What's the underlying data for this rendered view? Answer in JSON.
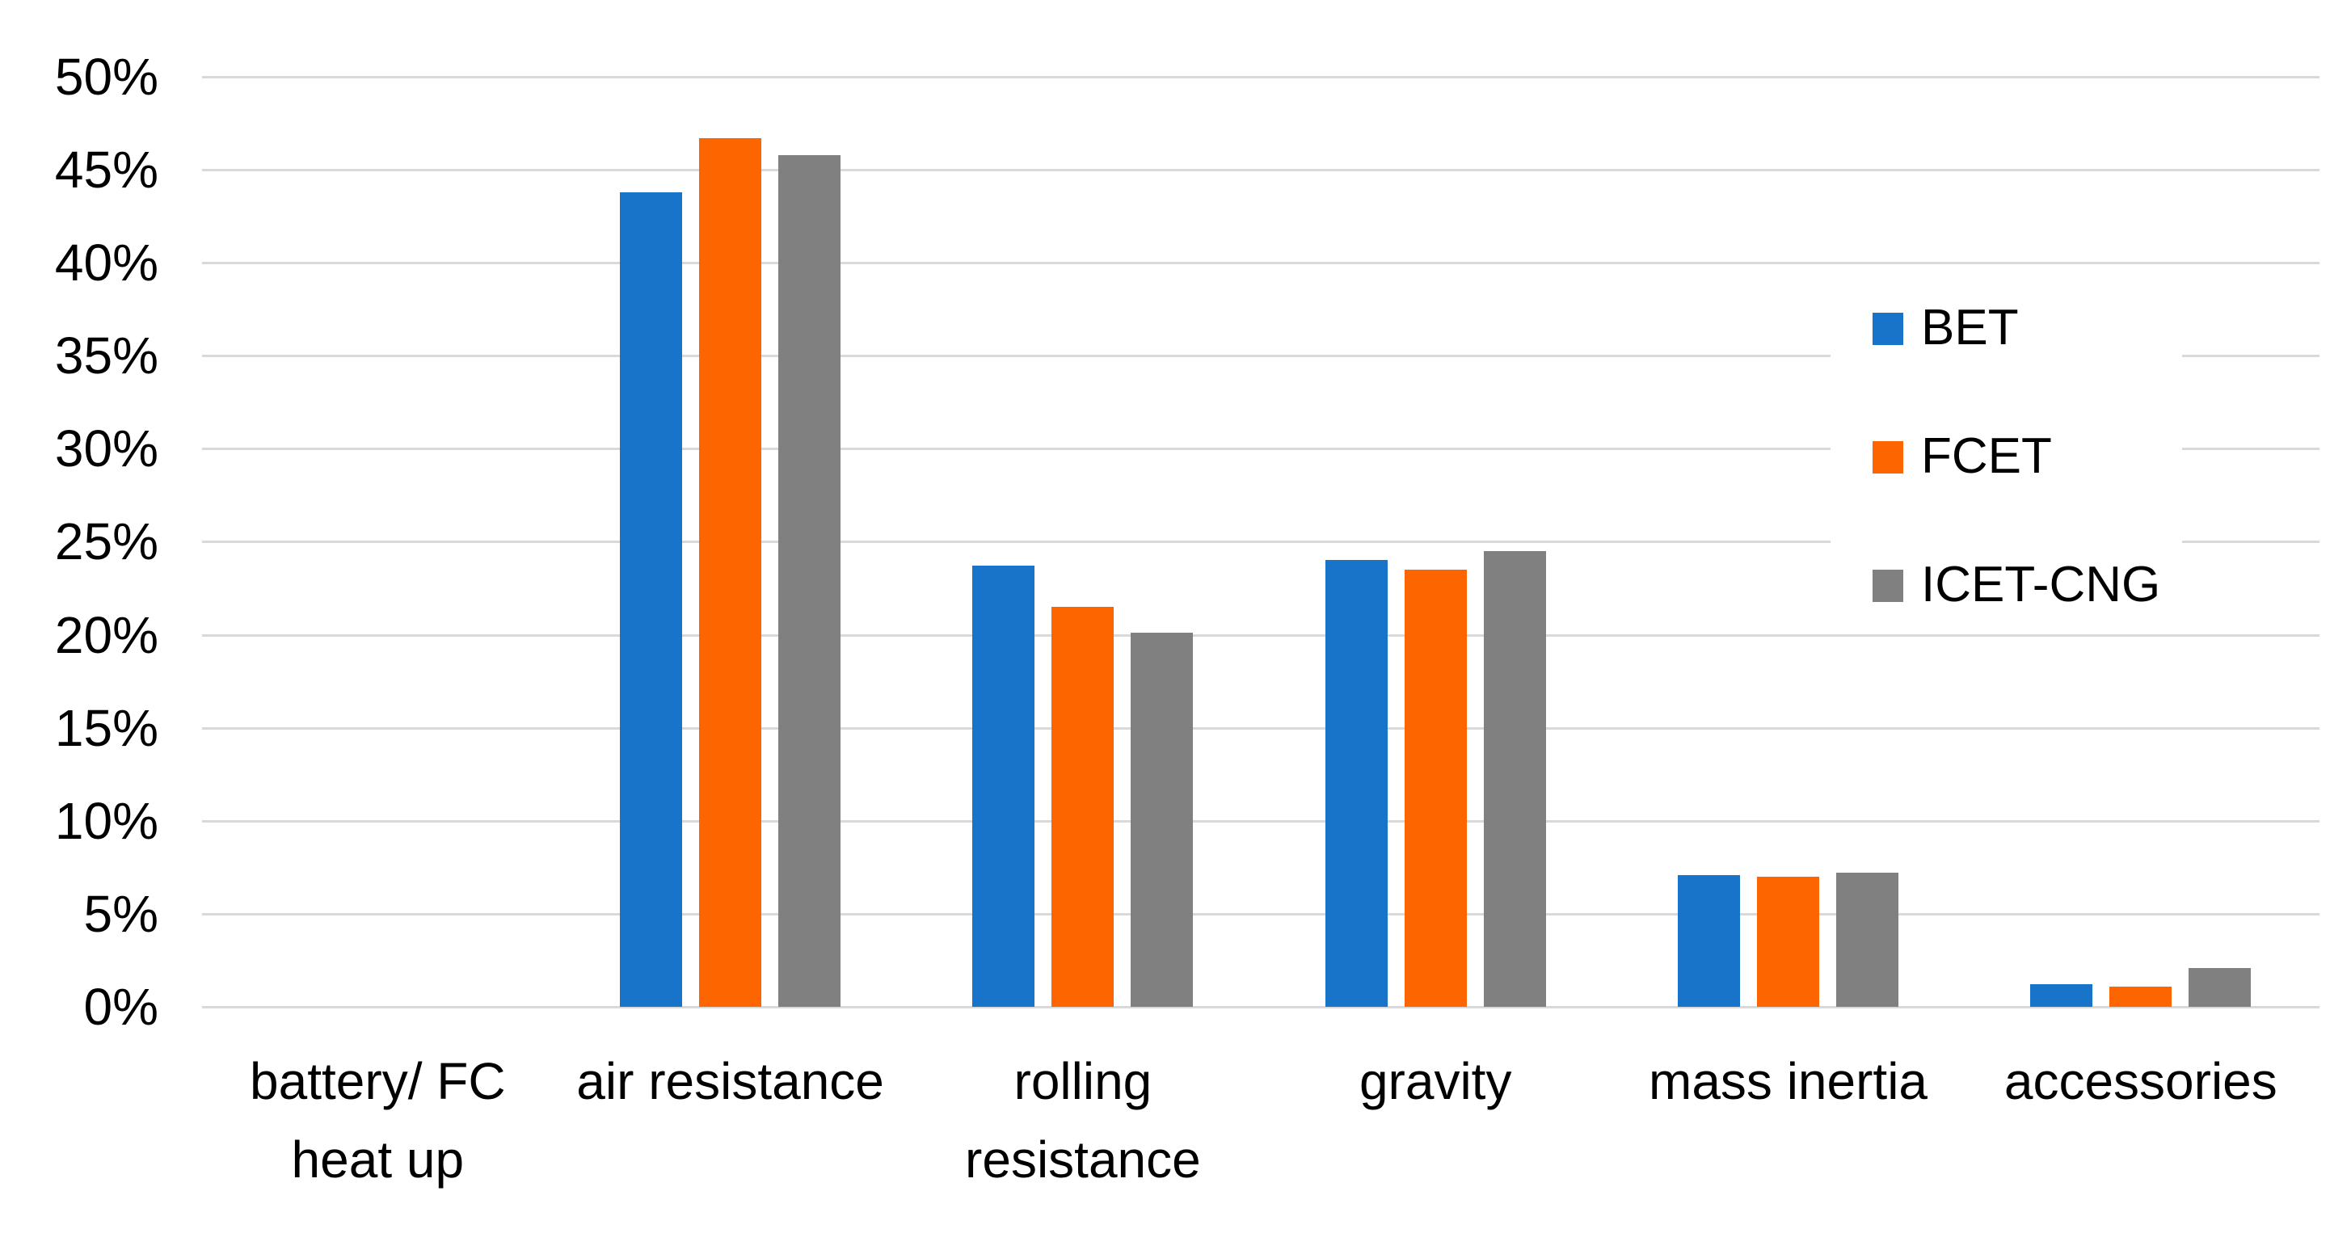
{
  "chart_data": {
    "type": "bar",
    "title": "",
    "xlabel": "",
    "ylabel": "",
    "categories": [
      "battery/ FC\nheat up",
      "air resistance",
      "rolling\nresistance",
      "gravity",
      "mass inertia",
      "accessories"
    ],
    "series": [
      {
        "name": "BET",
        "color": "#1874C8",
        "values": [
          0,
          43.8,
          23.7,
          24.0,
          7.1,
          1.2
        ]
      },
      {
        "name": "FCET",
        "color": "#FD6500",
        "values": [
          0,
          46.7,
          21.5,
          23.5,
          7.0,
          1.1
        ]
      },
      {
        "name": "ICET-CNG",
        "color": "#808080",
        "values": [
          0,
          45.8,
          20.1,
          24.5,
          7.2,
          2.1
        ]
      }
    ],
    "y_ticks": [
      "0%",
      "5%",
      "10%",
      "15%",
      "20%",
      "25%",
      "30%",
      "35%",
      "40%",
      "45%",
      "50%"
    ],
    "ylim": [
      0,
      50
    ],
    "y_tick_step": 5,
    "grid": true,
    "legend_position": "right-inside",
    "colors": {
      "gridline": "#D9D9D9",
      "text": "#000000",
      "background": "#FFFFFF"
    }
  }
}
